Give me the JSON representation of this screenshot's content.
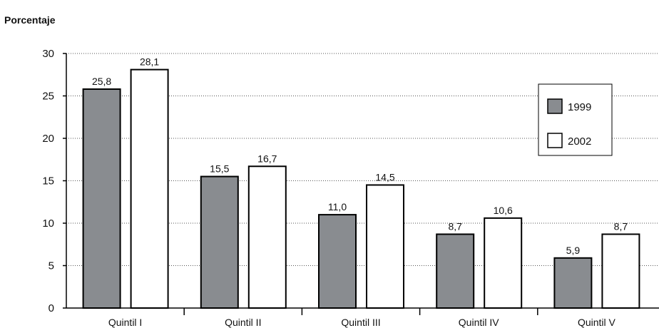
{
  "chart_data": {
    "type": "bar",
    "y_label": "Porcentaje",
    "categories": [
      "Quintil I",
      "Quintil II",
      "Quintil III",
      "Quintil IV",
      "Quintil V"
    ],
    "series": [
      {
        "name": "1999",
        "color": "#898c90",
        "values": [
          25.8,
          15.5,
          11.0,
          8.7,
          5.9
        ],
        "value_labels": [
          "25,8",
          "15,5",
          "11,0",
          "8,7",
          "5,9"
        ]
      },
      {
        "name": "2002",
        "color": "#ffffff",
        "values": [
          28.1,
          16.7,
          14.5,
          10.6,
          8.7
        ],
        "value_labels": [
          "28,1",
          "16,7",
          "14,5",
          "10,6",
          "8,7"
        ]
      }
    ],
    "ylim": [
      0,
      30
    ],
    "yticks": [
      0,
      5,
      10,
      15,
      20,
      25,
      30
    ],
    "grid": true,
    "legend": "right"
  }
}
